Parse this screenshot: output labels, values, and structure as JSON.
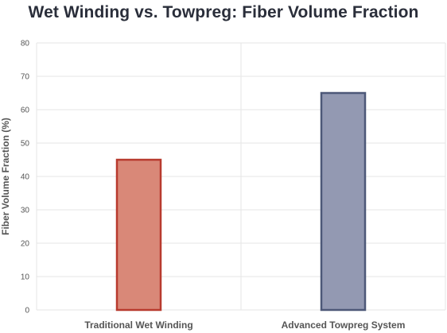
{
  "chart_data": {
    "type": "bar",
    "title": "Wet Winding vs. Towpreg: Fiber Volume Fraction",
    "xlabel": "",
    "ylabel": "Fiber Volume Fraction (%)",
    "categories": [
      "Traditional Wet Winding",
      "Advanced Towpreg System"
    ],
    "values": [
      45,
      65
    ],
    "ylim": [
      0,
      80
    ],
    "yticks": [
      0,
      10,
      20,
      30,
      40,
      50,
      60,
      70,
      80
    ],
    "grid": true,
    "legend": "none",
    "colors": {
      "fills": [
        "#d98878",
        "#9399b2"
      ],
      "strokes": [
        "#b83a2e",
        "#4d5878"
      ],
      "grid": "#e6e6e6",
      "text": "#555555",
      "title": "#2a2e3a"
    }
  }
}
